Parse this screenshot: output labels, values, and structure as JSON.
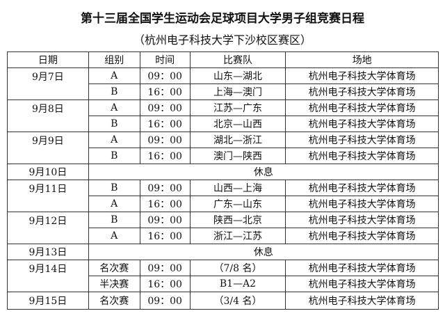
{
  "title": "第十三届全国学生运动会足球项目大学男子组竞赛日程",
  "subtitle": "（杭州电子科技大学下沙校区赛区）",
  "headers": [
    "日期",
    "组别",
    "时间",
    "比赛队",
    "场地"
  ],
  "days": [
    {
      "date": "9月7日",
      "matches": [
        {
          "group": "A",
          "time": "09：00",
          "teams": "山东—湖北",
          "venue": "杭州电子科技大学体育场"
        },
        {
          "group": "B",
          "time": "16：00",
          "teams": "上海—澳门",
          "venue": "杭州电子科技大学体育场"
        }
      ]
    },
    {
      "date": "9月8日",
      "matches": [
        {
          "group": "A",
          "time": "09：00",
          "teams": "江苏—广东",
          "venue": "杭州电子科技大学体育场"
        },
        {
          "group": "B",
          "time": "16：00",
          "teams": "北京—山西",
          "venue": "杭州电子科技大学体育场"
        }
      ]
    },
    {
      "date": "9月9日",
      "matches": [
        {
          "group": "A",
          "time": "09：00",
          "teams": "湖北—浙江",
          "venue": "杭州电子科技大学体育场"
        },
        {
          "group": "B",
          "time": "16：00",
          "teams": "澳门—陕西",
          "venue": "杭州电子科技大学体育场"
        }
      ]
    },
    {
      "date": "9月10日",
      "rest": "休息"
    },
    {
      "date": "9月11日",
      "matches": [
        {
          "group": "B",
          "time": "09：00",
          "teams": "山西—上海",
          "venue": "杭州电子科技大学体育场"
        },
        {
          "group": "A",
          "time": "16：00",
          "teams": "广东—山东",
          "venue": "杭州电子科技大学体育场"
        }
      ]
    },
    {
      "date": "9月12日",
      "matches": [
        {
          "group": "B",
          "time": "09：00",
          "teams": "陕西—北京",
          "venue": "杭州电子科技大学体育场"
        },
        {
          "group": "A",
          "time": "16：00",
          "teams": "浙江—江苏",
          "venue": "杭州电子科技大学体育场"
        }
      ]
    },
    {
      "date": "9月13日",
      "rest": "休息"
    },
    {
      "date": "9月14日",
      "matches": [
        {
          "group": "名次赛",
          "time": "09：00",
          "teams": "（7/8 名）",
          "venue": "杭州电子科技大学体育场"
        },
        {
          "group": "半决赛",
          "time": "16：00",
          "teams": "B1—A2",
          "venue": "杭州电子科技大学体育场"
        }
      ]
    },
    {
      "date": "9月15日",
      "matches": [
        {
          "group": "名次赛",
          "time": "09：00",
          "teams": "（3/4 名）",
          "venue": "杭州电子科技大学体育场"
        }
      ]
    }
  ]
}
